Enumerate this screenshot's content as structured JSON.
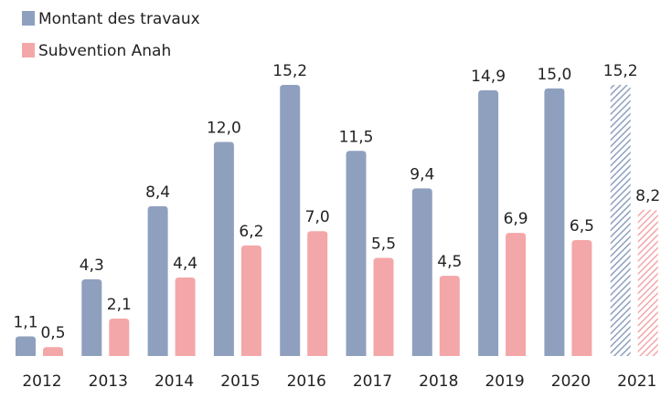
{
  "chart_data": {
    "type": "bar",
    "categories": [
      "2012",
      "2013",
      "2014",
      "2015",
      "2016",
      "2017",
      "2018",
      "2019",
      "2020",
      "2021"
    ],
    "hatched": [
      false,
      false,
      false,
      false,
      false,
      false,
      false,
      false,
      false,
      true
    ],
    "series": [
      {
        "name": "Montant des travaux",
        "color": "#8fa0bf",
        "values": [
          1.1,
          4.3,
          8.4,
          12.0,
          15.2,
          11.5,
          9.4,
          14.9,
          15.0,
          15.2
        ],
        "value_labels": [
          "1,1",
          "4,3",
          "8,4",
          "12,0",
          "15,2",
          "11,5",
          "9,4",
          "14,9",
          "15,0",
          "15,2"
        ]
      },
      {
        "name": "Subvention Anah",
        "color": "#f4a7a8",
        "values": [
          0.5,
          2.1,
          4.4,
          6.2,
          7.0,
          5.5,
          4.5,
          6.9,
          6.5,
          8.2
        ],
        "value_labels": [
          "0,5",
          "2,1",
          "4,4",
          "6,2",
          "7,0",
          "5,5",
          "4,5",
          "6,9",
          "6,5",
          "8,2"
        ]
      }
    ]
  }
}
